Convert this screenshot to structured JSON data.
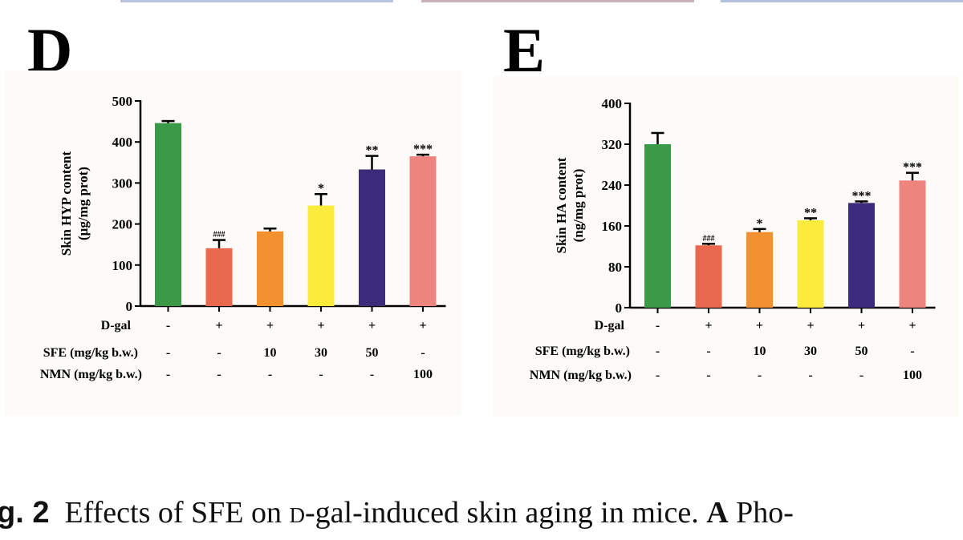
{
  "chart_data": [
    {
      "panel": "D",
      "type": "bar",
      "ylabel": "Skin HYP content",
      "yunit": "(μg/mg prot)",
      "ylim": [
        0,
        500
      ],
      "yticks": [
        0,
        100,
        200,
        300,
        400,
        500
      ],
      "series": [
        {
          "name": "Skin HYP content",
          "values": [
            446,
            141,
            182,
            245,
            333,
            365
          ],
          "errors": [
            5,
            20,
            7,
            28,
            33,
            4
          ],
          "significance": [
            "",
            "###",
            "",
            "*",
            "**",
            "***"
          ]
        }
      ],
      "treatment_rows": [
        {
          "label": "D-gal",
          "values": [
            "-",
            "+",
            "+",
            "+",
            "+",
            "+"
          ]
        },
        {
          "label": "SFE (mg/kg b.w.)",
          "values": [
            "-",
            "-",
            "10",
            "30",
            "50",
            "-"
          ]
        },
        {
          "label": "NMN (mg/kg b.w.)",
          "values": [
            "-",
            "-",
            "-",
            "-",
            "-",
            "100"
          ]
        }
      ]
    },
    {
      "panel": "E",
      "type": "bar",
      "ylabel": "Skin HA content",
      "yunit": "(ng/mg prot)",
      "ylim": [
        0,
        400
      ],
      "yticks": [
        0,
        80,
        160,
        240,
        320,
        400
      ],
      "series": [
        {
          "name": "Skin HA content",
          "values": [
            320,
            122,
            148,
            171,
            205,
            249
          ],
          "errors": [
            22,
            3,
            6,
            4,
            3,
            15
          ],
          "significance": [
            "",
            "###",
            "*",
            "**",
            "***",
            "***"
          ]
        }
      ],
      "treatment_rows": [
        {
          "label": "D-gal",
          "values": [
            "-",
            "+",
            "+",
            "+",
            "+",
            "+"
          ]
        },
        {
          "label": "SFE (mg/kg b.w.)",
          "values": [
            "-",
            "-",
            "10",
            "30",
            "50",
            "-"
          ]
        },
        {
          "label": "NMN (mg/kg b.w.)",
          "values": [
            "-",
            "-",
            "-",
            "-",
            "-",
            "100"
          ]
        }
      ]
    }
  ],
  "colors": {
    "bars": [
      "#3a9a48",
      "#e8694d",
      "#f3902f",
      "#fbeb3c",
      "#3c2b7a",
      "#ee847e"
    ],
    "axis": "#000000",
    "panel_bg": "#fdfbf7",
    "strip": [
      "#7d95c6",
      "#c7a2a8",
      "#9fb2d6"
    ]
  },
  "caption": {
    "prefix": "g. 2",
    "text_before": "Effects of SFE on",
    "smallcaps": "d",
    "text_middle": "-gal-induced skin aging in mice.",
    "bold": "A",
    "text_after": "Pho-"
  }
}
